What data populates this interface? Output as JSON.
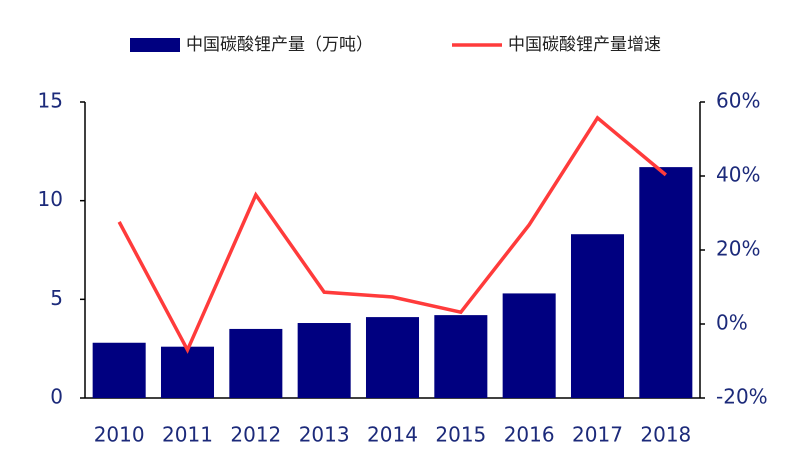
{
  "chart_data": {
    "type": "bar",
    "categories": [
      "2010",
      "2011",
      "2012",
      "2013",
      "2014",
      "2015",
      "2016",
      "2017",
      "2018"
    ],
    "series": [
      {
        "name": "中国碳酸锂产量（万吨）",
        "color": "#000080",
        "type": "bar",
        "values": [
          2.8,
          2.6,
          3.5,
          3.8,
          4.1,
          4.2,
          5.3,
          8.3,
          11.7
        ]
      },
      {
        "name": "中国碳酸锂产量增速",
        "color": "#ff3b3b",
        "type": "line",
        "axis": "y2",
        "values": [
          27.6,
          -7,
          34.9,
          8.6,
          7.3,
          3.2,
          26.8,
          55.7,
          40.3
        ]
      }
    ],
    "ylim": [
      0,
      15
    ],
    "yticks": [
      0,
      5,
      10,
      15
    ],
    "y2lim": [
      -20,
      60
    ],
    "y2ticks": [
      {
        "value": -20,
        "label": "-20%"
      },
      {
        "value": 0,
        "label": "0%"
      },
      {
        "value": 20,
        "label": "20%"
      },
      {
        "value": 40,
        "label": "40%"
      },
      {
        "value": 60,
        "label": "60%"
      }
    ],
    "legend": "top",
    "grid": false
  }
}
